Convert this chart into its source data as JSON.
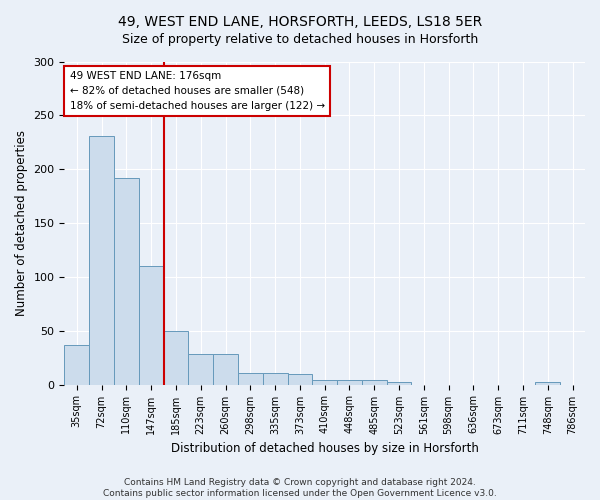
{
  "title1": "49, WEST END LANE, HORSFORTH, LEEDS, LS18 5ER",
  "title2": "Size of property relative to detached houses in Horsforth",
  "xlabel": "Distribution of detached houses by size in Horsforth",
  "ylabel": "Number of detached properties",
  "categories": [
    "35sqm",
    "72sqm",
    "110sqm",
    "147sqm",
    "185sqm",
    "223sqm",
    "260sqm",
    "298sqm",
    "335sqm",
    "373sqm",
    "410sqm",
    "448sqm",
    "485sqm",
    "523sqm",
    "561sqm",
    "598sqm",
    "636sqm",
    "673sqm",
    "711sqm",
    "748sqm",
    "786sqm"
  ],
  "values": [
    37,
    231,
    192,
    110,
    50,
    28,
    28,
    11,
    11,
    10,
    4,
    4,
    4,
    2,
    0,
    0,
    0,
    0,
    0,
    2,
    0
  ],
  "bar_color": "#ccdcec",
  "bar_edge_color": "#6699bb",
  "vline_color": "#cc0000",
  "vline_x_idx": 3.5,
  "annotation_line1": "49 WEST END LANE: 176sqm",
  "annotation_line2": "← 82% of detached houses are smaller (548)",
  "annotation_line3": "18% of semi-detached houses are larger (122) →",
  "annotation_box_color": "white",
  "annotation_box_edge_color": "#cc0000",
  "ylim": [
    0,
    300
  ],
  "yticks": [
    0,
    50,
    100,
    150,
    200,
    250,
    300
  ],
  "footer_text": "Contains HM Land Registry data © Crown copyright and database right 2024.\nContains public sector information licensed under the Open Government Licence v3.0.",
  "background_color": "#eaf0f8",
  "plot_background_color": "#eaf0f8",
  "title_fontsize": 10,
  "subtitle_fontsize": 9.5,
  "tick_fontsize": 7,
  "ylabel_fontsize": 8.5,
  "xlabel_fontsize": 8.5,
  "footer_fontsize": 6.5
}
